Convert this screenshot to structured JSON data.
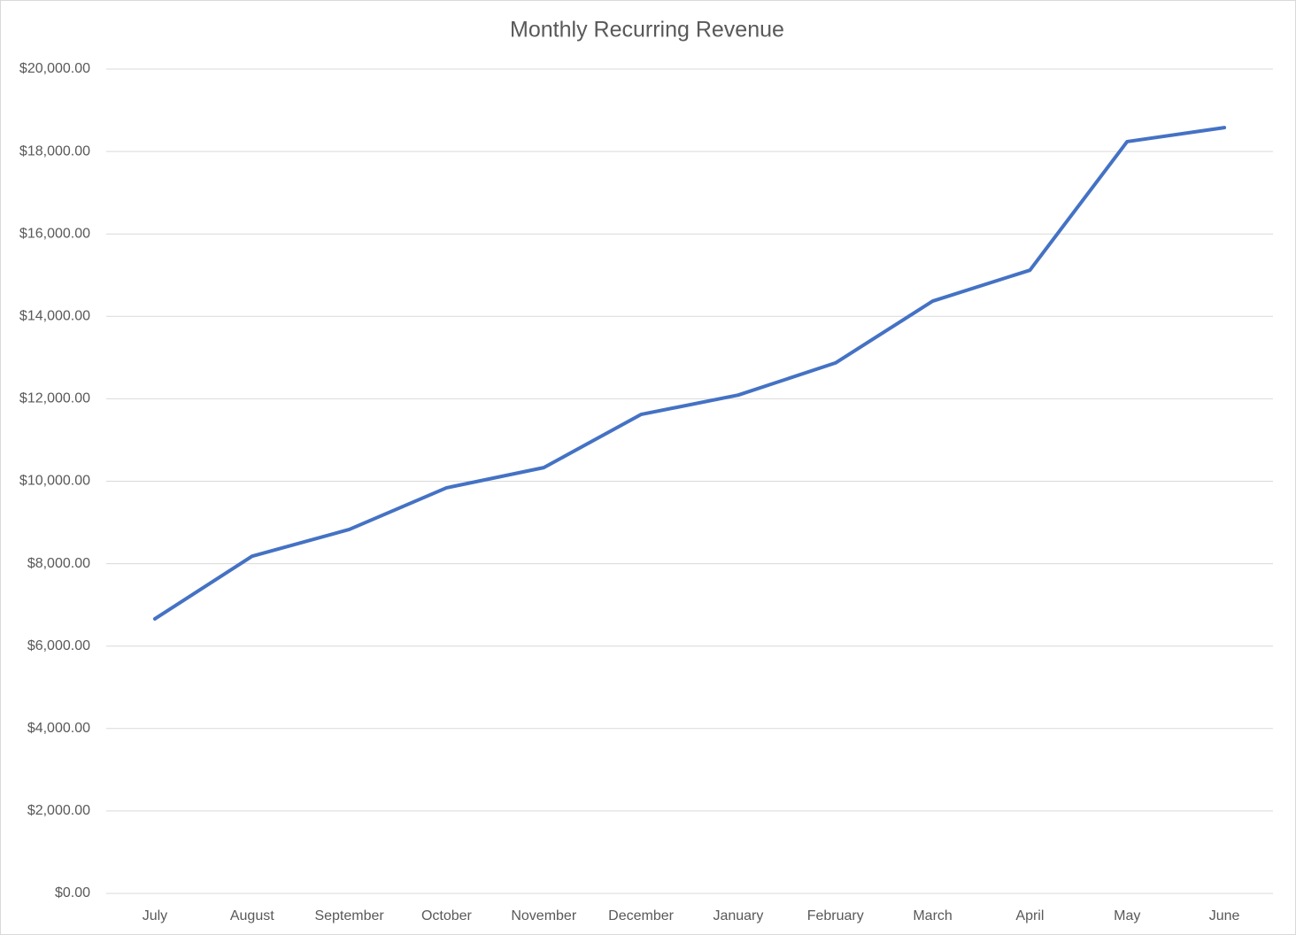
{
  "chart_data": {
    "type": "line",
    "title": "Monthly Recurring Revenue",
    "categories": [
      "July",
      "August",
      "September",
      "October",
      "November",
      "December",
      "January",
      "February",
      "March",
      "April",
      "May",
      "June"
    ],
    "series": [
      {
        "name": "Monthly Recurring Revenue",
        "color": "#4472c4",
        "values": [
          6660,
          8180,
          8830,
          9840,
          10330,
          11620,
          12090,
          12870,
          14370,
          15120,
          18240,
          18580
        ]
      }
    ],
    "ylim": [
      0,
      20000
    ],
    "yticks": [
      {
        "value": 0,
        "label": "$0.00"
      },
      {
        "value": 2000,
        "label": "$2,000.00"
      },
      {
        "value": 4000,
        "label": "$4,000.00"
      },
      {
        "value": 6000,
        "label": "$6,000.00"
      },
      {
        "value": 8000,
        "label": "$8,000.00"
      },
      {
        "value": 10000,
        "label": "$10,000.00"
      },
      {
        "value": 12000,
        "label": "$12,000.00"
      },
      {
        "value": 14000,
        "label": "$14,000.00"
      },
      {
        "value": 16000,
        "label": "$16,000.00"
      },
      {
        "value": 18000,
        "label": "$18,000.00"
      },
      {
        "value": 20000,
        "label": "$20,000.00"
      }
    ],
    "grid": true
  }
}
